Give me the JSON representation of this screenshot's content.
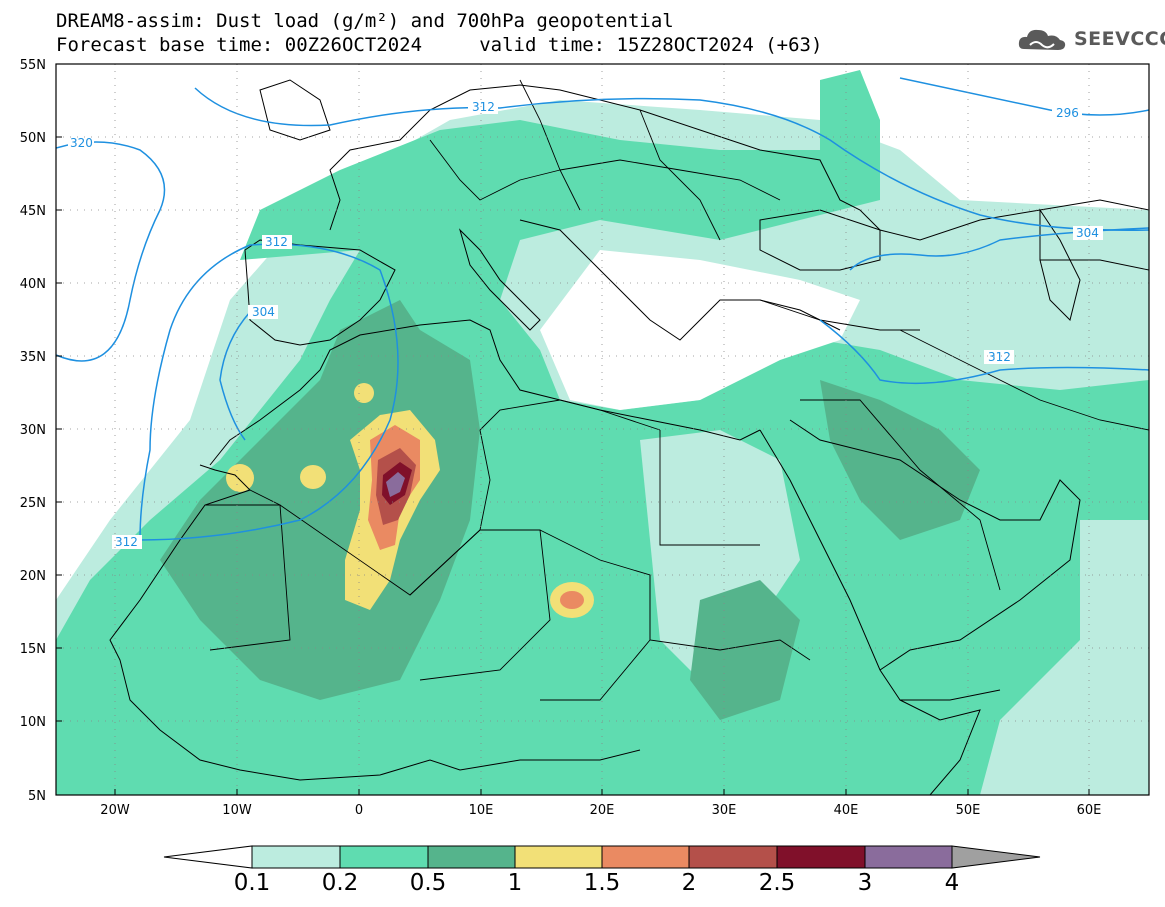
{
  "header": {
    "title_line1": "DREAM8-assim: Dust load (g/m²) and 700hPa geopotential",
    "title_line2": "Forecast base time: 00Z26OCT2024     valid time: 15Z28OCT2024 (+63)",
    "logo_text": "SEEVCCC"
  },
  "map": {
    "lat_ticks": [
      "55N",
      "50N",
      "45N",
      "40N",
      "35N",
      "30N",
      "25N",
      "20N",
      "15N",
      "10N",
      "5N"
    ],
    "lon_ticks": [
      "20W",
      "10W",
      "0",
      "10E",
      "20E",
      "30E",
      "40E",
      "50E",
      "60E"
    ],
    "contour_labels": [
      "320",
      "312",
      "312",
      "304",
      "312",
      "312",
      "304",
      "296",
      "304"
    ],
    "colors": {
      "contour": "#1e90e0",
      "dust_0_1": "#bcecdf",
      "dust_0_2": "#5fdcb0",
      "dust_0_5": "#55b48c",
      "dust_1": "#f2e077",
      "dust_1_5": "#ea8a62",
      "dust_2": "#b4504a",
      "dust_2_5": "#80102a",
      "dust_3": "#8a6c9c",
      "dust_4": "#a0a0a0"
    }
  },
  "colorbar": {
    "labels": [
      "0.1",
      "0.2",
      "0.5",
      "1",
      "1.5",
      "2",
      "2.5",
      "3",
      "4"
    ],
    "colors": [
      "#bcecdf",
      "#5fdcb0",
      "#55b48c",
      "#f2e077",
      "#ea8a62",
      "#b4504a",
      "#80102a",
      "#8a6c9c"
    ]
  }
}
